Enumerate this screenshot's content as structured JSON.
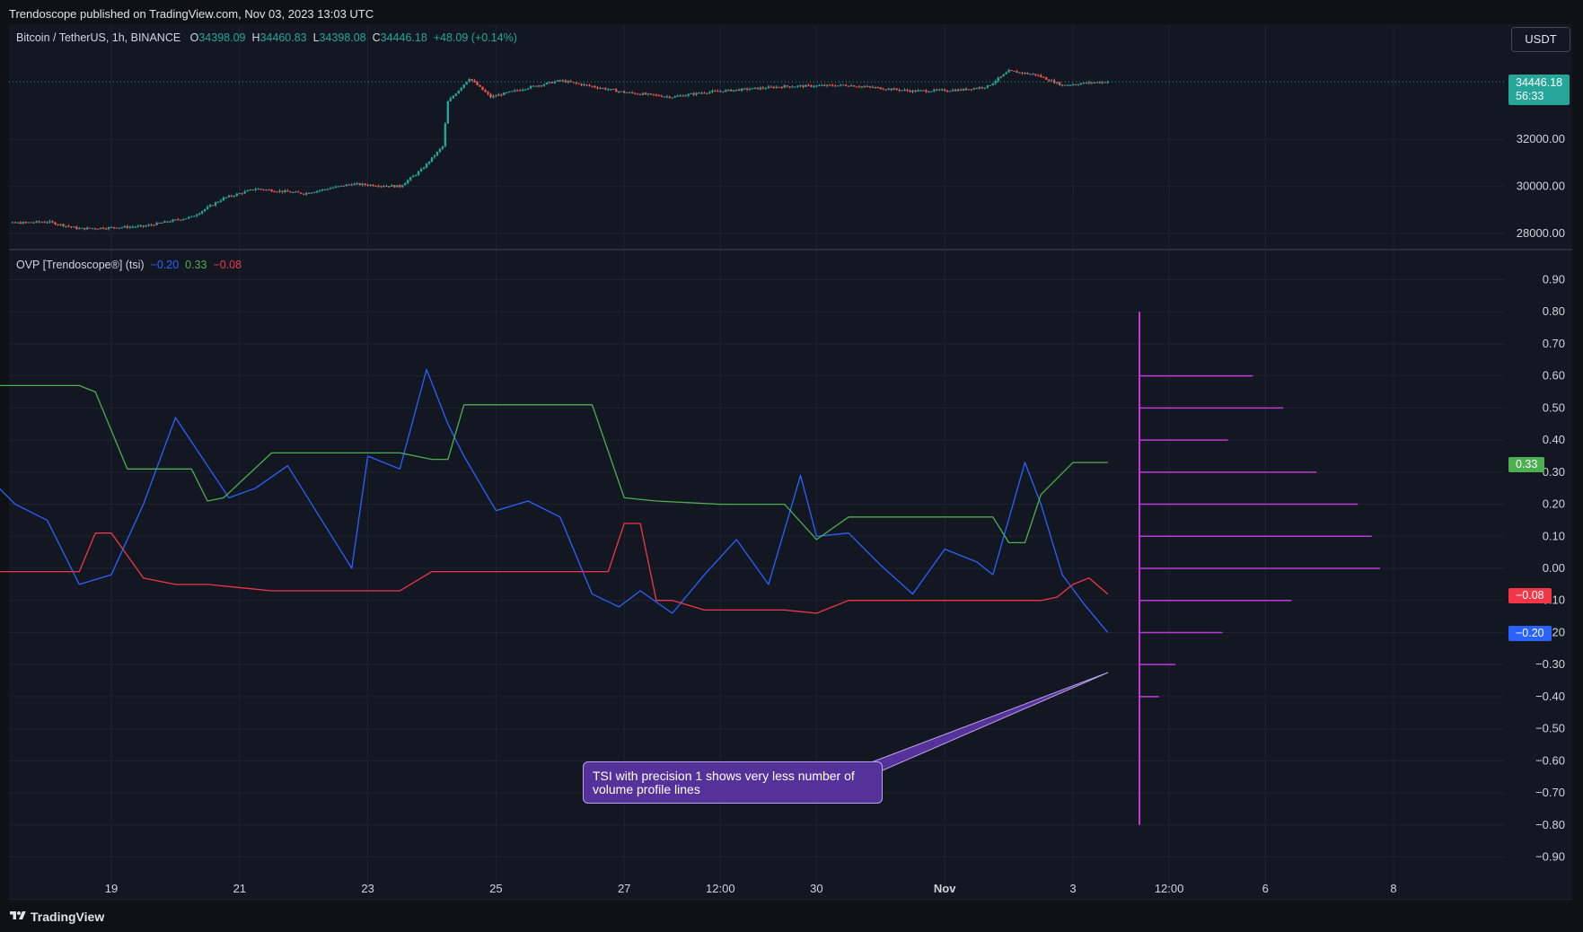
{
  "header": {
    "published": "Trendoscope published on TradingView.com, Nov 03, 2023 13:03 UTC"
  },
  "footer": {
    "brand": "TradingView",
    "logo_icon": "tradingview-logo-icon"
  },
  "currency_button": "USDT",
  "legend": {
    "symbol": "Bitcoin / TetherUS, 1h, BINANCE",
    "o_label": "O",
    "o": "34398.09",
    "h_label": "H",
    "h": "34460.83",
    "l_label": "L",
    "l": "34398.08",
    "c_label": "C",
    "c": "34446.18",
    "change": "+48.09 (+0.14%)"
  },
  "indicator_legend": {
    "name": "OVP [Trendoscope®] (tsi)",
    "v1": "−0.20",
    "v2": "0.33",
    "v3": "−0.08"
  },
  "colors": {
    "up": "#26a69a",
    "down": "#ef5350",
    "tsi": "#2962ff",
    "upper": "#4caf50",
    "lower": "#f23645",
    "profile": "#c038d8",
    "annotation": "#55319a"
  },
  "price_tag": {
    "value": "34446.18",
    "countdown": "56:33"
  },
  "indicator_tags": {
    "upper": "0.33",
    "lower": "−0.08",
    "tsi": "−0.20"
  },
  "annotation": {
    "line1": "TSI with precision 1 shows very less number of",
    "line2": "volume profile lines"
  },
  "chart_data": [
    {
      "type": "candlestick",
      "title": "Bitcoin / TetherUS, 1h, BINANCE",
      "y_ticks": [
        "32000.00",
        "30000.00",
        "28000.00"
      ],
      "y_tick_values": [
        32000,
        30000,
        28000
      ],
      "ylim": [
        27100,
        35400
      ],
      "last_price": 34446.18,
      "x_range": [
        "2023-10-17",
        "2023-11-10"
      ],
      "keypoints": [
        [
          "2023-10-17T00:00",
          28380
        ],
        [
          "2023-10-18T00:00",
          28500
        ],
        [
          "2023-10-18T12:00",
          28200
        ],
        [
          "2023-10-19T12:00",
          28300
        ],
        [
          "2023-10-20T06:00",
          28700
        ],
        [
          "2023-10-20T18:00",
          29500
        ],
        [
          "2023-10-21T06:00",
          29900
        ],
        [
          "2023-10-22T00:00",
          29700
        ],
        [
          "2023-10-22T18:00",
          30100
        ],
        [
          "2023-10-23T12:00",
          30000
        ],
        [
          "2023-10-23T20:00",
          30700
        ],
        [
          "2023-10-24T04:00",
          31700
        ],
        [
          "2023-10-24T06:00",
          33600
        ],
        [
          "2023-10-24T14:00",
          34600
        ],
        [
          "2023-10-24T22:00",
          33800
        ],
        [
          "2023-10-25T12:00",
          34200
        ],
        [
          "2023-10-26T00:00",
          34500
        ],
        [
          "2023-10-26T12:00",
          34250
        ],
        [
          "2023-10-27T00:00",
          34000
        ],
        [
          "2023-10-27T18:00",
          33800
        ],
        [
          "2023-10-28T06:00",
          34000
        ],
        [
          "2023-10-29T12:00",
          34250
        ],
        [
          "2023-10-30T12:00",
          34300
        ],
        [
          "2023-10-31T12:00",
          34050
        ],
        [
          "2023-11-01T06:00",
          34100
        ],
        [
          "2023-11-01T16:00",
          34250
        ],
        [
          "2023-11-02T00:00",
          34900
        ],
        [
          "2023-11-02T10:00",
          34750
        ],
        [
          "2023-11-02T20:00",
          34300
        ],
        [
          "2023-11-03T06:00",
          34400
        ],
        [
          "2023-11-03T13:00",
          34446
        ]
      ]
    },
    {
      "type": "line",
      "title": "OVP [Trendoscope®] (tsi)",
      "y_ticks": [
        "0.90",
        "0.80",
        "0.70",
        "0.60",
        "0.50",
        "0.40",
        "0.30",
        "0.20",
        "0.10",
        "0.00",
        "−0.10",
        "−0.20",
        "−0.30",
        "−0.40",
        "−0.50",
        "−0.60",
        "−0.70",
        "−0.80",
        "−0.90"
      ],
      "y_tick_values": [
        0.9,
        0.8,
        0.7,
        0.6,
        0.5,
        0.4,
        0.3,
        0.2,
        0.1,
        0.0,
        -0.1,
        -0.2,
        -0.3,
        -0.4,
        -0.5,
        -0.6,
        -0.7,
        -0.8,
        -0.9
      ],
      "ylim": [
        -0.95,
        0.95
      ],
      "x_ticks": [
        "19",
        "21",
        "23",
        "25",
        "27",
        "12:00",
        "30",
        "Nov",
        "3",
        "12:00",
        "6",
        "8"
      ],
      "x_tick_dates": [
        "2023-10-19",
        "2023-10-21",
        "2023-10-23",
        "2023-10-25",
        "2023-10-27",
        "2023-10-28T12:00",
        "2023-10-30",
        "2023-11-01",
        "2023-11-03",
        "2023-11-04T12:00",
        "2023-11-06",
        "2023-11-08"
      ],
      "series": [
        {
          "x": [
            "2023-10-17T00:00",
            "2023-10-17T12:00",
            "2023-10-18T00:00",
            "2023-10-18T06:00",
            "2023-10-18T12:00",
            "2023-10-19T00:00",
            "2023-10-19T12:00",
            "2023-10-20T00:00",
            "2023-10-20T12:00",
            "2023-10-20T20:00",
            "2023-10-21T06:00",
            "2023-10-21T18:00",
            "2023-10-22T06:00",
            "2023-10-22T18:00",
            "2023-10-23T00:00",
            "2023-10-23T12:00",
            "2023-10-23T22:00",
            "2023-10-24T06:00",
            "2023-10-24T12:00",
            "2023-10-25T00:00",
            "2023-10-25T12:00",
            "2023-10-26T00:00",
            "2023-10-26T12:00",
            "2023-10-26T22:00",
            "2023-10-27T06:00",
            "2023-10-27T18:00",
            "2023-10-28T06:00",
            "2023-10-28T18:00",
            "2023-10-29T06:00",
            "2023-10-29T18:00",
            "2023-10-30T00:00",
            "2023-10-30T12:00",
            "2023-10-31T00:00",
            "2023-10-31T12:00",
            "2023-11-01T00:00",
            "2023-11-01T12:00",
            "2023-11-01T18:00",
            "2023-11-02T06:00",
            "2023-11-02T12:00",
            "2023-11-02T20:00",
            "2023-11-03T04:00",
            "2023-11-03T13:00"
          ],
          "values": [
            0.3,
            0.2,
            0.15,
            0.05,
            -0.05,
            -0.02,
            0.2,
            0.47,
            0.32,
            0.22,
            0.25,
            0.32,
            0.16,
            0.0,
            0.35,
            0.31,
            0.62,
            0.45,
            0.35,
            0.18,
            0.21,
            0.16,
            -0.08,
            -0.12,
            -0.07,
            -0.14,
            -0.02,
            0.09,
            -0.05,
            0.29,
            0.1,
            0.11,
            0.01,
            -0.08,
            0.06,
            0.02,
            -0.02,
            0.33,
            0.2,
            -0.02,
            -0.11,
            -0.2
          ]
        },
        {
          "x": [
            "2023-10-17T00:00",
            "2023-10-18T12:00",
            "2023-10-18T18:00",
            "2023-10-19T06:00",
            "2023-10-19T18:00",
            "2023-10-20T06:00",
            "2023-10-20T12:00",
            "2023-10-20T18:00",
            "2023-10-21T12:00",
            "2023-10-23T12:00",
            "2023-10-24T00:00",
            "2023-10-24T06:00",
            "2023-10-24T12:00",
            "2023-10-26T12:00",
            "2023-10-27T00:00",
            "2023-10-27T12:00",
            "2023-10-28T12:00",
            "2023-10-29T12:00",
            "2023-10-30T00:00",
            "2023-10-30T12:00",
            "2023-11-01T18:00",
            "2023-11-02T00:00",
            "2023-11-02T06:00",
            "2023-11-02T12:00",
            "2023-11-03T00:00",
            "2023-11-03T13:00"
          ],
          "values": [
            0.57,
            0.57,
            0.55,
            0.31,
            0.31,
            0.31,
            0.21,
            0.22,
            0.36,
            0.36,
            0.34,
            0.34,
            0.51,
            0.51,
            0.22,
            0.21,
            0.2,
            0.2,
            0.09,
            0.16,
            0.16,
            0.08,
            0.08,
            0.23,
            0.33,
            0.33
          ]
        },
        {
          "x": [
            "2023-10-17T00:00",
            "2023-10-18T12:00",
            "2023-10-18T18:00",
            "2023-10-19T00:00",
            "2023-10-19T12:00",
            "2023-10-20T00:00",
            "2023-10-20T12:00",
            "2023-10-21T12:00",
            "2023-10-23T12:00",
            "2023-10-24T00:00",
            "2023-10-25T00:00",
            "2023-10-26T18:00",
            "2023-10-27T00:00",
            "2023-10-27T06:00",
            "2023-10-27T12:00",
            "2023-10-27T18:00",
            "2023-10-28T06:00",
            "2023-10-29T12:00",
            "2023-10-30T00:00",
            "2023-10-30T12:00",
            "2023-11-01T00:00",
            "2023-11-02T12:00",
            "2023-11-02T18:00",
            "2023-11-03T00:00",
            "2023-11-03T06:00",
            "2023-11-03T13:00"
          ],
          "values": [
            -0.01,
            -0.01,
            0.11,
            0.11,
            -0.03,
            -0.05,
            -0.05,
            -0.07,
            -0.07,
            -0.01,
            -0.01,
            -0.01,
            0.14,
            0.14,
            -0.1,
            -0.1,
            -0.13,
            -0.13,
            -0.14,
            -0.1,
            -0.1,
            -0.1,
            -0.09,
            -0.05,
            -0.03,
            -0.08
          ]
        }
      ]
    },
    {
      "type": "bar",
      "title": "",
      "orientation": "horizontal",
      "categories": [
        0.6,
        0.5,
        0.4,
        0.3,
        0.2,
        0.1,
        0.0,
        -0.1,
        -0.2,
        -0.3,
        -0.4
      ],
      "values": [
        41,
        52,
        32,
        64,
        79,
        84,
        87,
        55,
        30,
        13,
        7
      ],
      "vertical_line_range": [
        -0.8,
        0.8
      ]
    }
  ]
}
